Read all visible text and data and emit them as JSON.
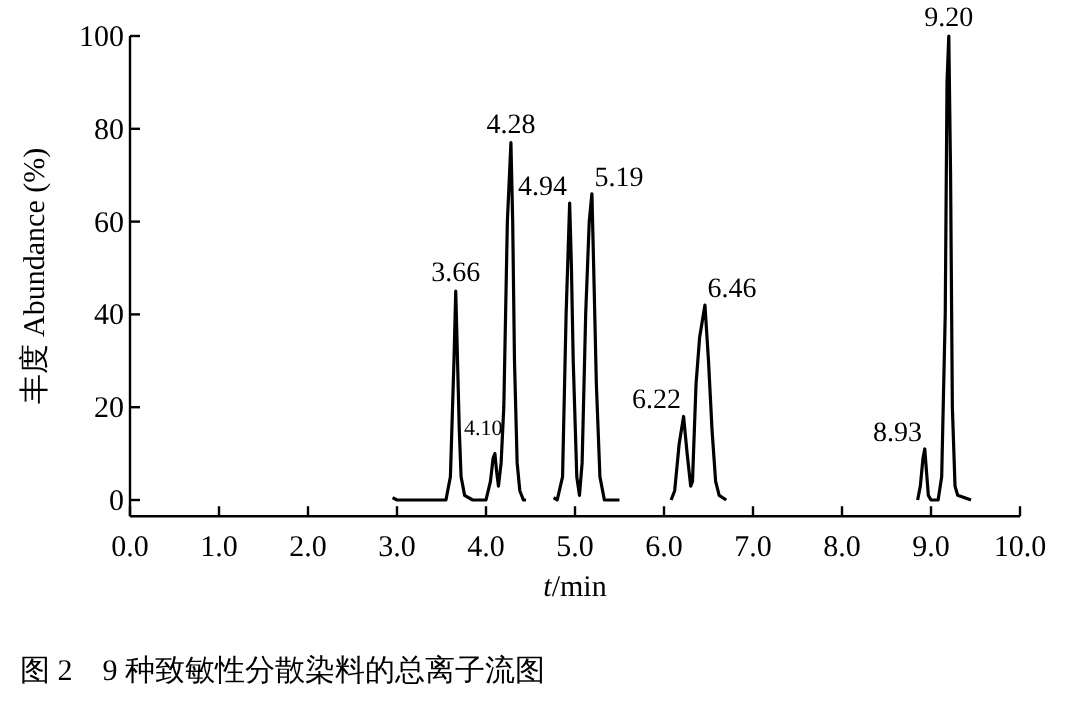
{
  "chart_data": {
    "type": "line",
    "xlabel": "*t*/min",
    "ylabel": "丰度 Abundance (%)",
    "xlim": [
      0,
      10
    ],
    "ylim": [
      -3.5,
      100
    ],
    "xticks": [
      {
        "value": 0,
        "label": "0.0"
      },
      {
        "value": 1,
        "label": "1.0"
      },
      {
        "value": 2,
        "label": "2.0"
      },
      {
        "value": 3,
        "label": "3.0"
      },
      {
        "value": 4,
        "label": "4.0"
      },
      {
        "value": 5,
        "label": "5.0"
      },
      {
        "value": 6,
        "label": "6.0"
      },
      {
        "value": 7,
        "label": "7.0"
      },
      {
        "value": 8,
        "label": "8.0"
      },
      {
        "value": 9,
        "label": "9.0"
      },
      {
        "value": 10,
        "label": "10.0"
      }
    ],
    "yticks": [
      0,
      20,
      40,
      60,
      80,
      100
    ],
    "grid": false,
    "marker": "none",
    "line_style": "solid",
    "x": [
      2.95,
      3.0,
      3.55,
      3.6,
      3.64,
      3.66,
      3.68,
      3.7,
      3.72,
      3.76,
      3.85,
      4.0,
      4.05,
      4.08,
      4.1,
      4.12,
      4.14,
      4.17,
      4.2,
      4.24,
      4.28,
      4.3,
      4.32,
      4.35,
      4.38,
      4.42,
      4.45,
      null,
      4.76,
      4.8,
      4.86,
      4.9,
      4.94,
      4.96,
      4.98,
      5.02,
      5.05,
      5.08,
      5.12,
      5.16,
      5.19,
      5.21,
      5.24,
      5.28,
      5.33,
      5.5,
      null,
      6.08,
      6.12,
      6.17,
      6.22,
      6.26,
      6.3,
      6.32,
      6.36,
      6.4,
      6.46,
      6.5,
      6.54,
      6.58,
      6.62,
      6.7,
      null,
      8.85,
      8.88,
      8.91,
      8.93,
      8.95,
      8.97,
      9.0,
      9.08,
      9.12,
      9.16,
      9.18,
      9.2,
      9.22,
      9.24,
      9.27,
      9.3,
      9.45
    ],
    "series": [
      {
        "color": "#000000",
        "values": [
          0.5,
          0,
          0,
          5,
          30,
          45,
          30,
          15,
          5,
          1,
          0,
          0,
          4,
          9,
          10,
          6,
          3,
          8,
          20,
          60,
          77,
          60,
          30,
          8,
          2,
          0,
          0,
          null,
          0.5,
          0,
          5,
          40,
          64,
          50,
          30,
          5,
          1,
          8,
          40,
          60,
          66,
          50,
          25,
          5,
          0,
          0,
          null,
          0,
          2,
          12,
          18,
          10,
          3,
          4,
          25,
          35,
          42,
          30,
          15,
          4,
          1,
          0,
          null,
          0,
          3,
          9,
          11,
          6,
          1,
          0,
          0,
          5,
          40,
          90,
          100,
          70,
          20,
          3,
          1,
          0
        ]
      }
    ],
    "annotations": [
      {
        "text": "3.66",
        "x": 3.66,
        "y": 45
      },
      {
        "text": "4.10",
        "x": 4.1,
        "y": 10
      },
      {
        "text": "4.28",
        "x": 4.28,
        "y": 77
      },
      {
        "text": "4.94",
        "x": 4.94,
        "y": 64
      },
      {
        "text": "5.19",
        "x": 5.19,
        "y": 66
      },
      {
        "text": "6.22",
        "x": 6.22,
        "y": 18
      },
      {
        "text": "6.46",
        "x": 6.46,
        "y": 42
      },
      {
        "text": "8.93",
        "x": 8.93,
        "y": 11
      },
      {
        "text": "9.20",
        "x": 9.2,
        "y": 100
      },
      "图 2　9 种致敏性分散染料的总离子流图"
    ]
  }
}
